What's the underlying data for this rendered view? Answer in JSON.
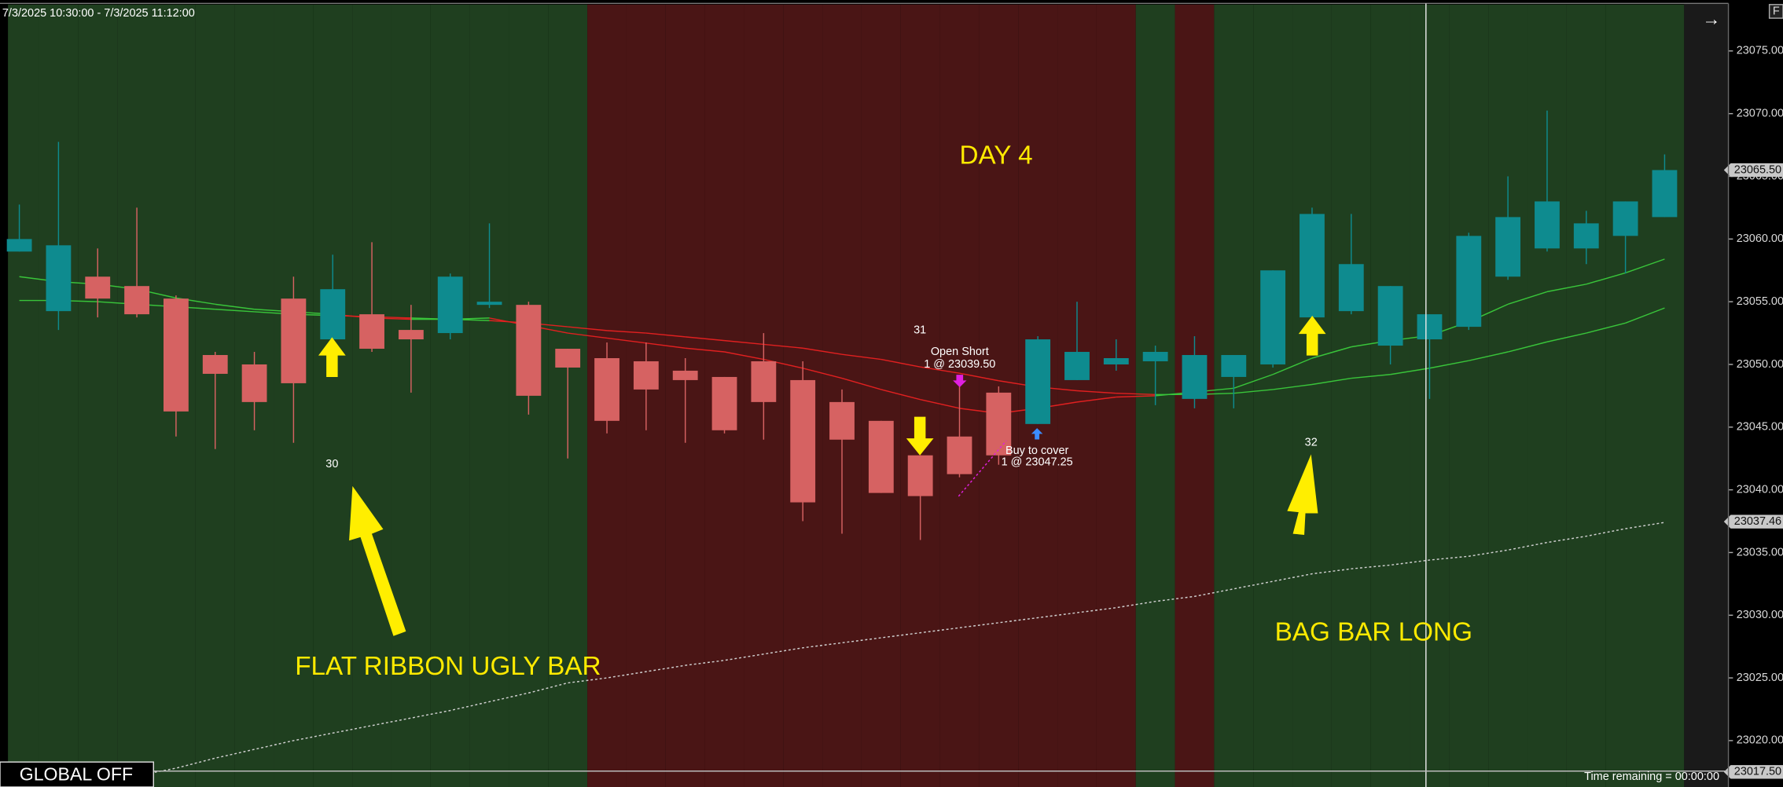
{
  "chart_data": {
    "type": "candlestick",
    "title": "7/3/2025 10:30:00 - 7/3/2025 11:12:00",
    "up_color": "#0e8b8f",
    "down_color": "#d66262",
    "open": [
      23059,
      23054.25,
      23057,
      23056.25,
      23055.25,
      23050.75,
      23050,
      23055.25,
      23052,
      23054,
      23052.75,
      23052.5,
      23054.75,
      23054.75,
      23051.25,
      23050.5,
      23050.25,
      23049.5,
      23049,
      23050.25,
      23048.75,
      23047,
      23045.5,
      23042.75,
      23044.25,
      23047.75,
      23045.25,
      23048.75,
      23050,
      23050.25,
      23047.25,
      23049,
      23050,
      23053.75,
      23054.25,
      23051.5,
      23052,
      23053,
      23057,
      23059.25,
      23059.25,
      23060.25,
      23061.75
    ],
    "high": [
      23062.75,
      23067.75,
      23059.25,
      23062.5,
      23055.5,
      23051,
      23051,
      23057,
      23058.75,
      23059.75,
      23054.75,
      23057.25,
      23061.25,
      23055,
      23051.25,
      23051.75,
      23051.75,
      23050.5,
      23049,
      23052.5,
      23050.25,
      23048,
      23045.5,
      23042.75,
      23048.25,
      23048.25,
      23052.25,
      23055,
      23052,
      23051.5,
      23052.25,
      23050.75,
      23057.5,
      23062.5,
      23062,
      23056.25,
      23054,
      23060.5,
      23065,
      23070.25,
      23062.25,
      23063,
      23066.75
    ],
    "low": [
      23059,
      23052.75,
      23053.75,
      23053.75,
      23044.25,
      23043.25,
      23044.75,
      23043.75,
      23052,
      23051,
      23047.75,
      23052,
      23054.5,
      23046,
      23042.5,
      23044.5,
      23044.75,
      23043.75,
      23044.5,
      23044,
      23037.5,
      23036.5,
      23039.75,
      23036,
      23041,
      23042,
      23045.25,
      23048.75,
      23049.5,
      23046.75,
      23046.5,
      23046.5,
      23049.75,
      23053.5,
      23054,
      23050,
      23047.25,
      23052.75,
      23056.75,
      23059,
      23058,
      23057.25,
      23061.75
    ],
    "close": [
      23060,
      23059.5,
      23055.25,
      23054,
      23046.25,
      23049.25,
      23047,
      23048.5,
      23056,
      23051.25,
      23052,
      23057,
      23055,
      23047.5,
      23049.75,
      23045.5,
      23048,
      23048.75,
      23044.75,
      23047,
      23039,
      23044,
      23039.75,
      23039.5,
      23041.25,
      23042.75,
      23052,
      23051,
      23050.5,
      23051,
      23050.75,
      23050.75,
      23057.5,
      23062,
      23058,
      23056.25,
      23054,
      23060.25,
      23061.75,
      23063,
      23061.25,
      23063,
      23065.5
    ],
    "background_colors": [
      "#1f3f1f",
      "#1f3f1f",
      "#1f3f1f",
      "#1f3f1f",
      "#1f3f1f",
      "#1f3f1f",
      "#1f3f1f",
      "#1f3f1f",
      "#1f3f1f",
      "#1f3f1f",
      "#1f3f1f",
      "#1f3f1f",
      "#1f3f1f",
      "#1f3f1f",
      "#1f3f1f",
      "#4a1515",
      "#4a1515",
      "#4a1515",
      "#4a1515",
      "#4a1515",
      "#4a1515",
      "#4a1515",
      "#4a1515",
      "#4a1515",
      "#4a1515",
      "#4a1515",
      "#4a1515",
      "#4a1515",
      "#4a1515",
      "#1f3f1f",
      "#4a1515",
      "#1f3f1f",
      "#1f3f1f",
      "#1f3f1f",
      "#1f3f1f",
      "#1f3f1f",
      "#1f3f1f",
      "#1f3f1f",
      "#1f3f1f",
      "#1f3f1f",
      "#1f3f1f",
      "#1f3f1f",
      "#1f3f1f"
    ],
    "ribbon_up_color": "#39c43a",
    "ribbon_down_color": "#e02020",
    "ribbon_fast": [
      23057,
      23056.6,
      23056.4,
      23056,
      23055.3,
      23054.8,
      23054.4,
      23054.2,
      23054,
      23053.7,
      23053.6,
      23053.6,
      23053.7,
      23053.1,
      23052.5,
      23052.1,
      23051.7,
      23051.3,
      23051,
      23050.4,
      23049.7,
      23048.9,
      23048,
      23047.2,
      23046.5,
      23046.1,
      23046.5,
      23047,
      23047.4,
      23047.5,
      23047.8,
      23048.1,
      23049.2,
      23050.5,
      23051.4,
      23051.9,
      23052.3,
      23053.4,
      23054.8,
      23055.8,
      23056.4,
      23057.3,
      23058.4
    ],
    "ribbon_slow": [
      23055.1,
      23055.1,
      23055,
      23054.8,
      23054.6,
      23054.4,
      23054.2,
      23054,
      23053.9,
      23053.8,
      23053.7,
      23053.6,
      23053.5,
      23053.3,
      23053,
      23052.7,
      23052.5,
      23052.2,
      23051.9,
      23051.6,
      23051.3,
      23050.8,
      23050.4,
      23049.8,
      23049.3,
      23048.7,
      23048.2,
      23047.9,
      23047.7,
      23047.6,
      23047.6,
      23047.7,
      23048,
      23048.4,
      23048.9,
      23049.2,
      23049.7,
      23050.3,
      23051,
      23051.8,
      23052.5,
      23053.3,
      23054.5
    ],
    "trend_line": {
      "color": "#d0d0d0",
      "values": [
        null,
        null,
        null,
        23017.2,
        23017.8,
        23018.6,
        23019.3,
        23020,
        23020.6,
        23021.2,
        23021.8,
        23022.4,
        23023.1,
        23023.8,
        23024.6,
        23025,
        23025.5,
        23026,
        23026.4,
        23026.9,
        23027.4,
        23027.8,
        23028.2,
        23028.6,
        23029,
        23029.4,
        23029.8,
        23030.2,
        23030.6,
        23031.1,
        23031.5,
        23032.1,
        23032.7,
        23033.3,
        23033.7,
        23034,
        23034.4,
        23034.7,
        23035.2,
        23035.8,
        23036.3,
        23036.9,
        23037.4
      ]
    },
    "ylim": [
      23016.3,
      23078.7
    ],
    "yticks": [
      {
        "value": 23075,
        "label": "23075.00"
      },
      {
        "value": 23070,
        "label": "23070.00"
      },
      {
        "value": 23065,
        "label": "23065.00"
      },
      {
        "value": 23060,
        "label": "23060.00"
      },
      {
        "value": 23055,
        "label": "23055.00"
      },
      {
        "value": 23050,
        "label": "23050.00"
      },
      {
        "value": 23045,
        "label": "23045.00"
      },
      {
        "value": 23040,
        "label": "23040.00"
      },
      {
        "value": 23035,
        "label": "23035.00"
      },
      {
        "value": 23030,
        "label": "23030.00"
      },
      {
        "value": 23025,
        "label": "23025.00"
      },
      {
        "value": 23020,
        "label": "23020.00"
      }
    ],
    "price_tags": [
      {
        "value": 23065.5,
        "label": "23065.50"
      },
      {
        "value": 23037.46,
        "label": "23037.46"
      },
      {
        "value": 23017.5,
        "label": "23017.50"
      }
    ],
    "annotations": {
      "day": "DAY 4",
      "left_note": "FLAT RIBBON UGLY BAR",
      "right_note": "BAG BAR LONG",
      "bar_counts": [
        30,
        31,
        32
      ],
      "entry_name": "Open Short",
      "entry_fill": "1 @ 23039.50",
      "exit_name": "Buy to cover",
      "exit_fill": "1 @ 23047.25"
    },
    "status": "GLOBAL OFF",
    "time_remaining": "Time remaining = 00:00:00",
    "corner_label": "F"
  }
}
